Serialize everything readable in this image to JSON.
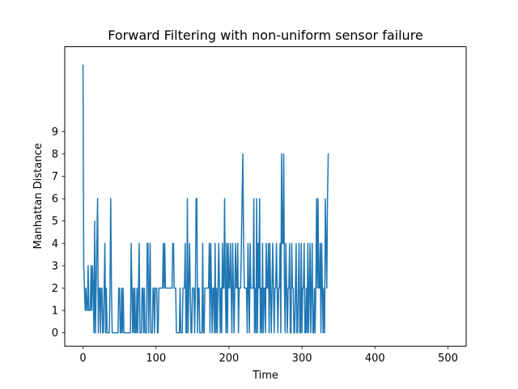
{
  "chart_data": {
    "type": "line",
    "title": "Forward Filtering with non-uniform sensor failure",
    "xlabel": "Time",
    "ylabel": "Manhattan Distance",
    "xlim": [
      -25,
      525
    ],
    "ylim": [
      -0.6,
      12.8
    ],
    "xticks": [
      0,
      100,
      200,
      300,
      400,
      500
    ],
    "yticks": [
      0,
      1,
      2,
      3,
      4,
      5,
      6,
      7,
      8,
      9
    ],
    "grid": false,
    "series_color": "#1f77b4",
    "series": [
      {
        "values": [
          12,
          3,
          2,
          1,
          2,
          1,
          1,
          3,
          1,
          1,
          1,
          3,
          1,
          3,
          2,
          0,
          5,
          0,
          2,
          4,
          6,
          0,
          2,
          2,
          0,
          2,
          2,
          0,
          0,
          2,
          4,
          0,
          2,
          0,
          0,
          0,
          0,
          2,
          6,
          2,
          0,
          0,
          0,
          0,
          0,
          0,
          0,
          0,
          0,
          2,
          2,
          0,
          0,
          2,
          0,
          2,
          0,
          0,
          0,
          0,
          0,
          0,
          0,
          0,
          0,
          0,
          4,
          2,
          0,
          2,
          0,
          2,
          0,
          0,
          2,
          0,
          2,
          4,
          0,
          0,
          0,
          2,
          2,
          0,
          2,
          0,
          0,
          0,
          4,
          4,
          0,
          2,
          4,
          0,
          0,
          0,
          2,
          2,
          0,
          2,
          2,
          2,
          0,
          0,
          2,
          2,
          2,
          2,
          2,
          2,
          4,
          2,
          4,
          2,
          2,
          2,
          2,
          2,
          2,
          2,
          2,
          2,
          2,
          4,
          4,
          2,
          2,
          2,
          0,
          0,
          0,
          0,
          0,
          2,
          0,
          0,
          0,
          2,
          2,
          2,
          4,
          0,
          0,
          6,
          0,
          2,
          4,
          2,
          0,
          0,
          2,
          2,
          2,
          0,
          2,
          6,
          6,
          0,
          2,
          2,
          0,
          0,
          0,
          0,
          4,
          0,
          0,
          2,
          2,
          2,
          2,
          2,
          2,
          4,
          0,
          4,
          2,
          0,
          2,
          2,
          0,
          4,
          0,
          2,
          0,
          2,
          4,
          2,
          0,
          2,
          0,
          4,
          2,
          2,
          6,
          2,
          0,
          4,
          0,
          4,
          2,
          2,
          4,
          2,
          0,
          4,
          2,
          0,
          2,
          4,
          2,
          2,
          4,
          0,
          2,
          2,
          2,
          4,
          6,
          8,
          4,
          2,
          2,
          2,
          2,
          0,
          4,
          2,
          0,
          4,
          2,
          2,
          2,
          2,
          6,
          0,
          2,
          0,
          6,
          0,
          4,
          2,
          6,
          0,
          2,
          0,
          4,
          0,
          2,
          2,
          0,
          4,
          2,
          2,
          4,
          0,
          4,
          2,
          0,
          2,
          4,
          2,
          0,
          2,
          2,
          4,
          2,
          0,
          2,
          2,
          4,
          0,
          8,
          4,
          4,
          8,
          2,
          0,
          4,
          2,
          0,
          2,
          2,
          4,
          0,
          0,
          4,
          2,
          2,
          0,
          0,
          2,
          4,
          0,
          0,
          2,
          4,
          0,
          0,
          4,
          0,
          2,
          2,
          4,
          0,
          0,
          2,
          0,
          4,
          0,
          2,
          4,
          0,
          2,
          4,
          0,
          0,
          2,
          0,
          2,
          6,
          2,
          6,
          2,
          2,
          4,
          0,
          4,
          2,
          0,
          2,
          0,
          6,
          4,
          2,
          6,
          8,
          8
        ]
      }
    ]
  }
}
